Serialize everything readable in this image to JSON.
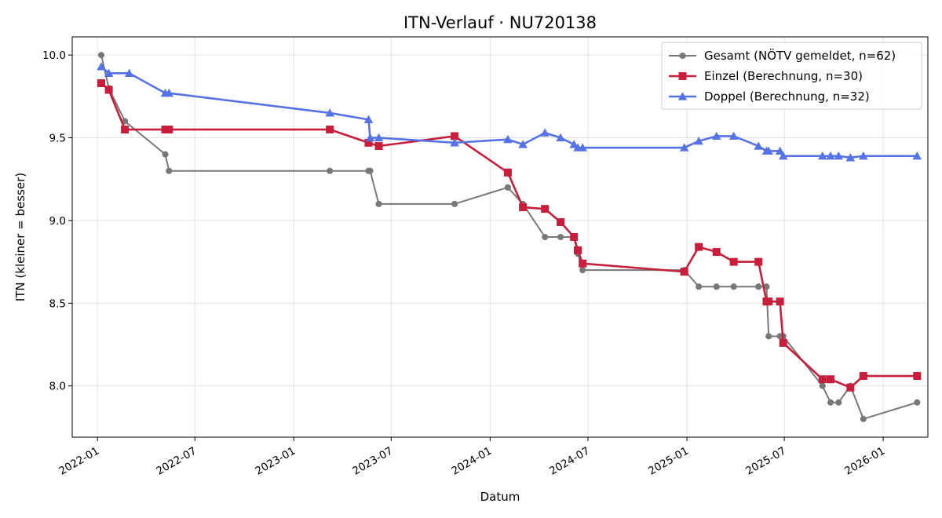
{
  "chart_data": {
    "type": "line",
    "title": "ITN-Verlauf · NU720138",
    "xlabel": "Datum",
    "ylabel": "ITN  (kleiner = besser)",
    "x_axis_type": "date",
    "xlim": [
      "2021-11-15",
      "2026-03-25"
    ],
    "ylim": [
      7.69,
      10.11
    ],
    "x_ticks": [
      "2022-01-01",
      "2022-07-01",
      "2023-01-01",
      "2023-07-01",
      "2024-01-01",
      "2024-07-01",
      "2025-01-01",
      "2025-07-01",
      "2026-01-01"
    ],
    "x_tick_labels": [
      "2022-01",
      "2022-07",
      "2023-01",
      "2023-07",
      "2024-01",
      "2024-07",
      "2025-01",
      "2025-07",
      "2026-01"
    ],
    "y_ticks": [
      8.0,
      8.5,
      9.0,
      9.5,
      10.0
    ],
    "y_tick_labels": [
      "8.0",
      "8.5",
      "9.0",
      "9.5",
      "10.0"
    ],
    "grid": true,
    "legend_position": "top-right",
    "series": [
      {
        "name": "Gesamt (NÖTV gemeldet, n=62)",
        "color": "#404040",
        "marker": "circle",
        "x": [
          "2022-01-08",
          "2022-01-22",
          "2022-02-21",
          "2022-05-07",
          "2022-05-14",
          "2023-03-09",
          "2023-05-20",
          "2023-05-23",
          "2023-06-08",
          "2023-10-27",
          "2024-02-03",
          "2024-03-02",
          "2024-04-12",
          "2024-05-11",
          "2024-06-05",
          "2024-06-12",
          "2024-06-21",
          "2024-12-27",
          "2025-01-23",
          "2025-02-25",
          "2025-03-29",
          "2025-05-14",
          "2025-05-29",
          "2025-06-02",
          "2025-06-23",
          "2025-06-29",
          "2025-09-10",
          "2025-09-25",
          "2025-10-10",
          "2025-11-01",
          "2025-11-25",
          "2026-03-05"
        ],
        "values": [
          10.0,
          9.8,
          9.6,
          9.4,
          9.3,
          9.3,
          9.3,
          9.3,
          9.1,
          9.1,
          9.2,
          9.1,
          8.9,
          8.9,
          8.9,
          8.8,
          8.7,
          8.7,
          8.6,
          8.6,
          8.6,
          8.6,
          8.6,
          8.3,
          8.3,
          8.3,
          8.0,
          7.9,
          7.9,
          8.0,
          7.8,
          7.9
        ]
      },
      {
        "name": "Einzel (Berechnung, n=30)",
        "color": "#c81e3c",
        "marker": "square",
        "x": [
          "2022-01-08",
          "2022-01-22",
          "2022-02-21",
          "2022-05-07",
          "2022-05-14",
          "2023-03-09",
          "2023-05-20",
          "2023-06-08",
          "2023-10-27",
          "2024-02-03",
          "2024-03-02",
          "2024-04-12",
          "2024-05-11",
          "2024-06-05",
          "2024-06-12",
          "2024-06-21",
          "2024-12-27",
          "2025-01-23",
          "2025-02-25",
          "2025-03-29",
          "2025-05-14",
          "2025-05-29",
          "2025-06-02",
          "2025-06-23",
          "2025-06-29",
          "2025-09-10",
          "2025-09-25",
          "2025-11-01",
          "2025-11-25",
          "2026-03-05"
        ],
        "values": [
          9.83,
          9.79,
          9.55,
          9.55,
          9.55,
          9.55,
          9.47,
          9.45,
          9.51,
          9.29,
          9.08,
          9.07,
          8.99,
          8.9,
          8.82,
          8.74,
          8.69,
          8.84,
          8.81,
          8.75,
          8.75,
          8.51,
          8.51,
          8.51,
          8.26,
          8.04,
          8.04,
          7.99,
          8.06,
          8.06
        ]
      },
      {
        "name": "Doppel (Berechnung, n=32)",
        "color": "#5572e6",
        "marker": "triangle",
        "x": [
          "2022-01-08",
          "2022-01-22",
          "2022-03-01",
          "2022-05-07",
          "2022-05-14",
          "2023-03-09",
          "2023-05-20",
          "2023-05-23",
          "2023-06-08",
          "2023-10-27",
          "2024-02-03",
          "2024-03-02",
          "2024-04-12",
          "2024-05-11",
          "2024-06-05",
          "2024-06-12",
          "2024-06-21",
          "2024-12-27",
          "2025-01-23",
          "2025-02-25",
          "2025-03-29",
          "2025-05-14",
          "2025-05-29",
          "2025-06-02",
          "2025-06-23",
          "2025-06-29",
          "2025-09-10",
          "2025-09-25",
          "2025-10-10",
          "2025-11-01",
          "2025-11-25",
          "2026-03-05"
        ],
        "values": [
          9.93,
          9.89,
          9.89,
          9.77,
          9.77,
          9.65,
          9.61,
          9.5,
          9.5,
          9.47,
          9.49,
          9.46,
          9.53,
          9.5,
          9.46,
          9.44,
          9.44,
          9.44,
          9.48,
          9.51,
          9.51,
          9.45,
          9.42,
          9.42,
          9.42,
          9.39,
          9.39,
          9.39,
          9.39,
          9.38,
          9.39,
          9.39
        ]
      }
    ]
  }
}
